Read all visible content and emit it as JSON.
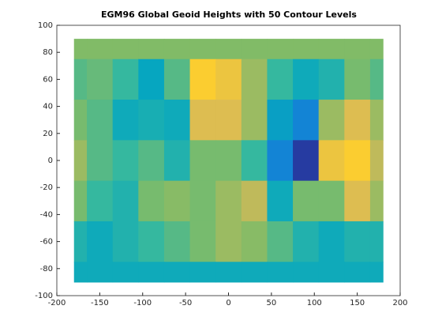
{
  "chart_data": {
    "type": "contour",
    "title": "EGM96 Global Geoid Heights with 50 Contour Levels",
    "x": [
      -180,
      -150,
      -120,
      -90,
      -60,
      -30,
      0,
      30,
      60,
      90,
      120,
      150,
      180
    ],
    "y": [
      90,
      60,
      30,
      0,
      -30,
      -60,
      -90
    ],
    "z": [
      [
        13,
        13,
        13,
        13,
        13,
        13,
        13,
        13,
        13,
        13,
        13,
        13,
        13
      ],
      [
        0,
        5,
        -10,
        -35,
        0,
        60,
        50,
        20,
        -10,
        -30,
        -20,
        10,
        0
      ],
      [
        10,
        0,
        -30,
        -25,
        -30,
        40,
        40,
        20,
        -40,
        -60,
        20,
        40,
        20
      ],
      [
        20,
        0,
        -10,
        0,
        -20,
        10,
        10,
        -10,
        -60,
        -100,
        50,
        60,
        30
      ],
      [
        10,
        -10,
        -20,
        10,
        15,
        10,
        20,
        30,
        -30,
        10,
        10,
        40,
        20
      ],
      [
        -20,
        -30,
        -20,
        -10,
        0,
        10,
        20,
        15,
        0,
        -20,
        -30,
        -20,
        -20
      ],
      [
        -30,
        -30,
        -30,
        -30,
        -30,
        -30,
        -30,
        -30,
        -30,
        -30,
        -30,
        -30,
        -30
      ]
    ],
    "zlim": [
      -107,
      85
    ],
    "colormap": "parula",
    "xlim": [
      -200,
      200
    ],
    "ylim": [
      -100,
      100
    ],
    "xticks": [
      -200,
      -150,
      -100,
      -50,
      0,
      50,
      100,
      150,
      200
    ],
    "yticks": [
      -100,
      -80,
      -60,
      -40,
      -20,
      0,
      20,
      40,
      60,
      80,
      100
    ]
  }
}
